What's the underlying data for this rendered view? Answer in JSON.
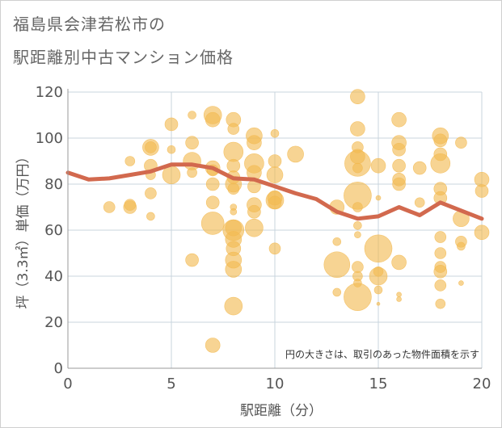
{
  "title": {
    "line1": "福島県会津若松市の",
    "line2": "駅距離別中古マンション価格"
  },
  "colors": {
    "bubble": "#f2b950",
    "line": "#d2694e",
    "grid": "#c9d4de",
    "axis": "#999999"
  },
  "chart_data": {
    "type": "scatter",
    "title": "福島県会津若松市の駅距離別中古マンション価格",
    "xlabel": "駅距離（分）",
    "ylabel": "坪（3.3㎡）単価（万円）",
    "xlim": [
      0,
      20
    ],
    "ylim": [
      0,
      120
    ],
    "xticks": [
      0,
      5,
      10,
      15,
      20
    ],
    "yticks": [
      0,
      20,
      40,
      60,
      80,
      100,
      120
    ],
    "grid": true,
    "annotation": "円の大きさは、取引のあった物件面積を示す",
    "bubble_series": [
      {
        "x": 2,
        "y": 70,
        "s": 7
      },
      {
        "x": 3,
        "y": 90,
        "s": 6
      },
      {
        "x": 3,
        "y": 71,
        "s": 7
      },
      {
        "x": 3,
        "y": 70,
        "s": 8
      },
      {
        "x": 4,
        "y": 96,
        "s": 10
      },
      {
        "x": 4,
        "y": 96,
        "s": 7
      },
      {
        "x": 4,
        "y": 88,
        "s": 8
      },
      {
        "x": 4,
        "y": 84,
        "s": 6
      },
      {
        "x": 4,
        "y": 76,
        "s": 7
      },
      {
        "x": 4,
        "y": 66,
        "s": 5
      },
      {
        "x": 5,
        "y": 106,
        "s": 8
      },
      {
        "x": 5,
        "y": 95,
        "s": 5
      },
      {
        "x": 5,
        "y": 84,
        "s": 11
      },
      {
        "x": 6,
        "y": 110,
        "s": 5
      },
      {
        "x": 6,
        "y": 98,
        "s": 8
      },
      {
        "x": 6,
        "y": 90,
        "s": 11
      },
      {
        "x": 6,
        "y": 85,
        "s": 6
      },
      {
        "x": 6,
        "y": 47,
        "s": 8
      },
      {
        "x": 7,
        "y": 110,
        "s": 11
      },
      {
        "x": 7,
        "y": 108,
        "s": 9
      },
      {
        "x": 7,
        "y": 87,
        "s": 9
      },
      {
        "x": 7,
        "y": 86,
        "s": 7
      },
      {
        "x": 7,
        "y": 80,
        "s": 8
      },
      {
        "x": 7,
        "y": 72,
        "s": 8
      },
      {
        "x": 7,
        "y": 63,
        "s": 14
      },
      {
        "x": 7,
        "y": 10,
        "s": 9
      },
      {
        "x": 8,
        "y": 108,
        "s": 9
      },
      {
        "x": 8,
        "y": 104,
        "s": 7
      },
      {
        "x": 8,
        "y": 94,
        "s": 12
      },
      {
        "x": 8,
        "y": 88,
        "s": 8
      },
      {
        "x": 8,
        "y": 83,
        "s": 8
      },
      {
        "x": 8,
        "y": 80,
        "s": 10
      },
      {
        "x": 8,
        "y": 78,
        "s": 7
      },
      {
        "x": 8,
        "y": 70,
        "s": 4
      },
      {
        "x": 8,
        "y": 68,
        "s": 4
      },
      {
        "x": 8,
        "y": 61,
        "s": 10
      },
      {
        "x": 8,
        "y": 60,
        "s": 13
      },
      {
        "x": 8,
        "y": 56,
        "s": 10
      },
      {
        "x": 8,
        "y": 52,
        "s": 9
      },
      {
        "x": 8,
        "y": 47,
        "s": 10
      },
      {
        "x": 8,
        "y": 43,
        "s": 10
      },
      {
        "x": 8,
        "y": 27,
        "s": 11
      },
      {
        "x": 9,
        "y": 101,
        "s": 10
      },
      {
        "x": 9,
        "y": 98,
        "s": 9
      },
      {
        "x": 9,
        "y": 89,
        "s": 12
      },
      {
        "x": 9,
        "y": 85,
        "s": 9
      },
      {
        "x": 9,
        "y": 79,
        "s": 8
      },
      {
        "x": 9,
        "y": 71,
        "s": 9
      },
      {
        "x": 9,
        "y": 68,
        "s": 8
      },
      {
        "x": 9,
        "y": 61,
        "s": 11
      },
      {
        "x": 10,
        "y": 102,
        "s": 5
      },
      {
        "x": 10,
        "y": 90,
        "s": 8
      },
      {
        "x": 10,
        "y": 84,
        "s": 10
      },
      {
        "x": 10,
        "y": 74,
        "s": 9
      },
      {
        "x": 10,
        "y": 73,
        "s": 11
      },
      {
        "x": 10,
        "y": 72,
        "s": 8
      },
      {
        "x": 10,
        "y": 52,
        "s": 7
      },
      {
        "x": 11,
        "y": 93,
        "s": 10
      },
      {
        "x": 13,
        "y": 70,
        "s": 9
      },
      {
        "x": 13,
        "y": 55,
        "s": 5
      },
      {
        "x": 13,
        "y": 45,
        "s": 16
      },
      {
        "x": 13,
        "y": 33,
        "s": 5
      },
      {
        "x": 14,
        "y": 118,
        "s": 9
      },
      {
        "x": 14,
        "y": 104,
        "s": 9
      },
      {
        "x": 14,
        "y": 96,
        "s": 7
      },
      {
        "x": 14,
        "y": 92,
        "s": 9
      },
      {
        "x": 14,
        "y": 89,
        "s": 16
      },
      {
        "x": 14,
        "y": 87,
        "s": 6
      },
      {
        "x": 14,
        "y": 75,
        "s": 17
      },
      {
        "x": 14,
        "y": 70,
        "s": 6
      },
      {
        "x": 14,
        "y": 62,
        "s": 5
      },
      {
        "x": 14,
        "y": 58,
        "s": 4
      },
      {
        "x": 14,
        "y": 44,
        "s": 7
      },
      {
        "x": 14,
        "y": 40,
        "s": 6
      },
      {
        "x": 14,
        "y": 37,
        "s": 5
      },
      {
        "x": 14,
        "y": 31,
        "s": 17
      },
      {
        "x": 15,
        "y": 88,
        "s": 9
      },
      {
        "x": 15,
        "y": 74,
        "s": 3
      },
      {
        "x": 15,
        "y": 52,
        "s": 17
      },
      {
        "x": 15,
        "y": 42,
        "s": 6
      },
      {
        "x": 15,
        "y": 40,
        "s": 11
      },
      {
        "x": 15,
        "y": 34,
        "s": 5
      },
      {
        "x": 15,
        "y": 28,
        "s": 2
      },
      {
        "x": 16,
        "y": 108,
        "s": 9
      },
      {
        "x": 16,
        "y": 98,
        "s": 9
      },
      {
        "x": 16,
        "y": 95,
        "s": 8
      },
      {
        "x": 16,
        "y": 88,
        "s": 8
      },
      {
        "x": 16,
        "y": 82,
        "s": 8
      },
      {
        "x": 16,
        "y": 80,
        "s": 8
      },
      {
        "x": 16,
        "y": 46,
        "s": 9
      },
      {
        "x": 16,
        "y": 32,
        "s": 3
      },
      {
        "x": 16,
        "y": 30,
        "s": 3
      },
      {
        "x": 17,
        "y": 87,
        "s": 8
      },
      {
        "x": 17,
        "y": 72,
        "s": 6
      },
      {
        "x": 18,
        "y": 101,
        "s": 10
      },
      {
        "x": 18,
        "y": 99,
        "s": 8
      },
      {
        "x": 18,
        "y": 93,
        "s": 8
      },
      {
        "x": 18,
        "y": 89,
        "s": 12
      },
      {
        "x": 18,
        "y": 78,
        "s": 8
      },
      {
        "x": 18,
        "y": 74,
        "s": 8
      },
      {
        "x": 18,
        "y": 57,
        "s": 7
      },
      {
        "x": 18,
        "y": 50,
        "s": 7
      },
      {
        "x": 18,
        "y": 44,
        "s": 7
      },
      {
        "x": 18,
        "y": 42,
        "s": 8
      },
      {
        "x": 18,
        "y": 36,
        "s": 7
      },
      {
        "x": 18,
        "y": 28,
        "s": 6
      },
      {
        "x": 19,
        "y": 98,
        "s": 7
      },
      {
        "x": 19,
        "y": 65,
        "s": 10
      },
      {
        "x": 19,
        "y": 55,
        "s": 7
      },
      {
        "x": 19,
        "y": 53,
        "s": 5
      },
      {
        "x": 19,
        "y": 37,
        "s": 3
      },
      {
        "x": 20,
        "y": 82,
        "s": 9
      },
      {
        "x": 20,
        "y": 77,
        "s": 8
      },
      {
        "x": 20,
        "y": 59,
        "s": 9
      }
    ],
    "line_series": {
      "x": [
        0,
        1,
        2,
        3,
        4,
        5,
        6,
        7,
        8,
        9,
        10,
        11,
        12,
        13,
        14,
        15,
        16,
        17,
        18,
        19,
        20
      ],
      "y": [
        85,
        82,
        82.5,
        84,
        85.5,
        88.5,
        88.5,
        87,
        82.5,
        82,
        79,
        76,
        73.5,
        68,
        65,
        66,
        70,
        66.5,
        72,
        68.5,
        65
      ]
    }
  }
}
